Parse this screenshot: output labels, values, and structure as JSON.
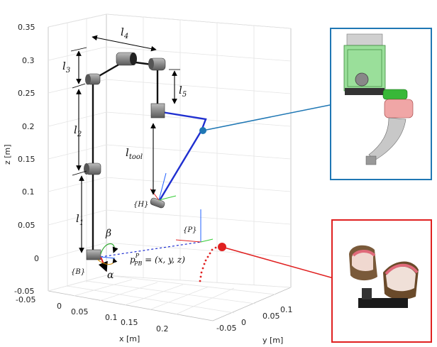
{
  "axes": {
    "z_label": "z [m]",
    "x_label": "x [m]",
    "y_label": "y [m]",
    "z_ticks": [
      "0.35",
      "0.3",
      "0.25",
      "0.2",
      "0.15",
      "0.1",
      "0.05",
      "0",
      "-0.05"
    ],
    "x_ticks": [
      "-0.05",
      "0",
      "0.05",
      "0.1",
      "0.15",
      "0.2"
    ],
    "y_ticks": [
      "0.1",
      "0.05",
      "0",
      "-0.05"
    ]
  },
  "labels": {
    "l1": "l",
    "l1_sub": "1",
    "l2": "l",
    "l2_sub": "2",
    "l3": "l",
    "l3_sub": "3",
    "l4": "l",
    "l4_sub": "4",
    "l5": "l",
    "l5_sub": "5",
    "ltool": "l",
    "ltool_sub": "tool",
    "frame_B": "{B}",
    "frame_H": "{H}",
    "frame_P": "{P}",
    "alpha": "α",
    "beta": "β",
    "vector_p": "p",
    "vector_p_sup": "P",
    "vector_p_sub": "PB",
    "vector_eq": " = (x, y, z)"
  },
  "colors": {
    "robot": "#111111",
    "tool_link": "#1f2fd0",
    "tool_callout": "#1f77b4",
    "target_callout": "#e02020"
  },
  "insets": [
    {
      "name": "tool-photo",
      "border": "#1f77b4"
    },
    {
      "name": "teeth-model-photo",
      "border": "#e02020"
    }
  ]
}
